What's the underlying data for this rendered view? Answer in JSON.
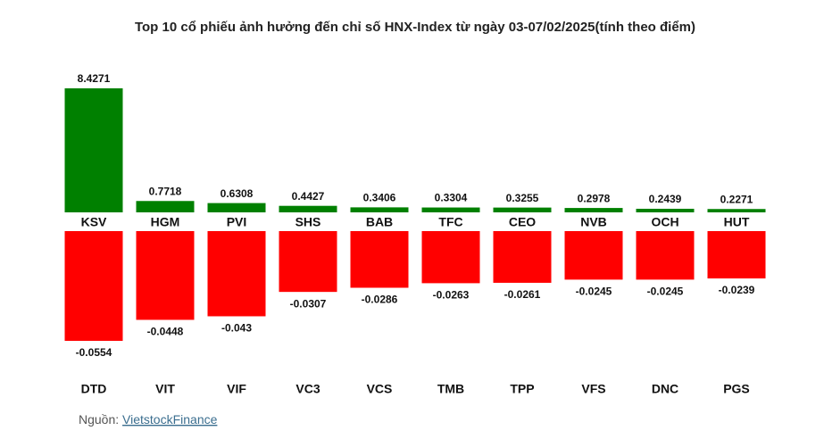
{
  "title": "Top 10 cổ phiếu ảnh hưởng đến chỉ số HNX-Index từ ngày 03-07/02/2025(tính theo điểm)",
  "source": {
    "prefix": "Nguồn:",
    "link": "VietstockFinance"
  },
  "chart_data": [
    {
      "type": "bar",
      "color": "#008000",
      "categories": [
        "KSV",
        "HGM",
        "PVI",
        "SHS",
        "BAB",
        "TFC",
        "CEO",
        "NVB",
        "OCH",
        "HUT"
      ],
      "values": [
        8.4271,
        0.7718,
        0.6308,
        0.4427,
        0.3406,
        0.3304,
        0.3255,
        0.2978,
        0.2439,
        0.2271
      ]
    },
    {
      "type": "bar",
      "color": "#ff0000",
      "categories": [
        "DTD",
        "VIT",
        "VIF",
        "VC3",
        "VCS",
        "TMB",
        "TPP",
        "VFS",
        "DNC",
        "PGS"
      ],
      "values": [
        -0.0554,
        -0.0448,
        -0.043,
        -0.0307,
        -0.0286,
        -0.0263,
        -0.0261,
        -0.0245,
        -0.0245,
        -0.0239
      ]
    }
  ]
}
